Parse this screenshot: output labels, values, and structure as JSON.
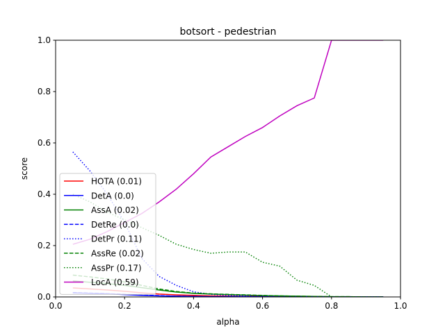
{
  "chart_data": {
    "type": "line",
    "title": "botsort - pedestrian",
    "xlabel": "alpha",
    "ylabel": "score",
    "xlim": [
      0.0,
      1.0
    ],
    "ylim": [
      0.0,
      1.0
    ],
    "xticks": [
      "0.0",
      "0.2",
      "0.4",
      "0.6",
      "0.8",
      "1.0"
    ],
    "yticks": [
      "0.0",
      "0.2",
      "0.4",
      "0.6",
      "0.8",
      "1.0"
    ],
    "grid": false,
    "legend_position": "lower-left",
    "x": [
      0.05,
      0.1,
      0.15,
      0.2,
      0.25,
      0.3,
      0.35,
      0.4,
      0.45,
      0.5,
      0.55,
      0.6,
      0.65,
      0.7,
      0.75,
      0.8,
      0.85,
      0.9,
      0.95
    ],
    "series": [
      {
        "name": "HOTA (0.01)",
        "color": "#ff0000",
        "dash": "solid",
        "values": [
          0.035,
          0.031,
          0.027,
          0.022,
          0.016,
          0.011,
          0.008,
          0.006,
          0.004,
          0.003,
          0.002,
          0.002,
          0.001,
          0.001,
          0.001,
          0.0,
          0.0,
          0.0,
          0.0
        ]
      },
      {
        "name": "DetA (0.0)",
        "color": "#0000ff",
        "dash": "solid",
        "values": [
          0.016,
          0.014,
          0.012,
          0.009,
          0.006,
          0.004,
          0.003,
          0.002,
          0.001,
          0.001,
          0.001,
          0.0,
          0.0,
          0.0,
          0.0,
          0.0,
          0.0,
          0.0,
          0.0
        ]
      },
      {
        "name": "AssA (0.02)",
        "color": "#008000",
        "dash": "solid",
        "values": [
          0.062,
          0.057,
          0.052,
          0.045,
          0.036,
          0.027,
          0.019,
          0.014,
          0.011,
          0.009,
          0.007,
          0.005,
          0.004,
          0.003,
          0.002,
          0.001,
          0.001,
          0.0,
          0.0
        ]
      },
      {
        "name": "DetRe (0.0)",
        "color": "#0000ff",
        "dash": "dashed",
        "values": [
          0.017,
          0.015,
          0.013,
          0.01,
          0.007,
          0.005,
          0.003,
          0.002,
          0.001,
          0.001,
          0.001,
          0.0,
          0.0,
          0.0,
          0.0,
          0.0,
          0.0,
          0.0,
          0.0
        ]
      },
      {
        "name": "DetPr (0.11)",
        "color": "#0000ff",
        "dash": "dotted",
        "values": [
          0.565,
          0.49,
          0.4,
          0.29,
          0.15,
          0.08,
          0.045,
          0.02,
          0.01,
          0.006,
          0.004,
          0.003,
          0.002,
          0.001,
          0.001,
          0.0,
          0.0,
          0.0,
          0.0
        ]
      },
      {
        "name": "AssRe (0.02)",
        "color": "#008000",
        "dash": "dashed",
        "values": [
          0.085,
          0.078,
          0.07,
          0.058,
          0.045,
          0.031,
          0.021,
          0.015,
          0.012,
          0.01,
          0.008,
          0.006,
          0.004,
          0.003,
          0.002,
          0.001,
          0.001,
          0.0,
          0.0
        ]
      },
      {
        "name": "AssPr (0.17)",
        "color": "#008000",
        "dash": "dotted",
        "values": [
          0.4,
          0.37,
          0.33,
          0.3,
          0.27,
          0.24,
          0.205,
          0.185,
          0.17,
          0.175,
          0.175,
          0.135,
          0.12,
          0.065,
          0.045,
          0.0,
          0.0,
          0.0,
          0.0
        ]
      },
      {
        "name": "LocA (0.59)",
        "color": "#bf00bf",
        "dash": "solid",
        "values": [
          0.205,
          0.225,
          0.255,
          0.29,
          0.325,
          0.37,
          0.42,
          0.48,
          0.545,
          0.585,
          0.625,
          0.66,
          0.705,
          0.745,
          0.775,
          1.0,
          1.0,
          1.0,
          1.0
        ]
      }
    ]
  }
}
